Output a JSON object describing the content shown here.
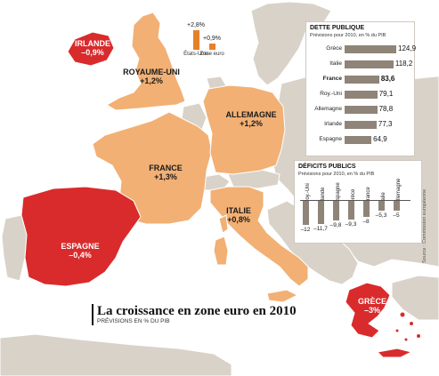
{
  "title": "La croissance en zone euro en 2010",
  "subtitle": "PRÉVISIONS EN % DU PIB",
  "colors": {
    "sea": "#ffffff",
    "land_other": "#d9d2c9",
    "growth_pos": "#f2b074",
    "growth_neg": "#d92b2c",
    "bar": "#8f8478",
    "accent": "#e8802a"
  },
  "countries": [
    {
      "id": "irlande",
      "name": "IRLANDE",
      "value": "–0,9%",
      "sign": "neg"
    },
    {
      "id": "royaume-uni",
      "name": "ROYAUME-UNI",
      "value": "+1,2%",
      "sign": "pos"
    },
    {
      "id": "france",
      "name": "FRANCE",
      "value": "+1,3%",
      "sign": "pos"
    },
    {
      "id": "allemagne",
      "name": "ALLEMAGNE",
      "value": "+1,2%",
      "sign": "pos"
    },
    {
      "id": "italie",
      "name": "ITALIE",
      "value": "+0,8%",
      "sign": "pos"
    },
    {
      "id": "espagne",
      "name": "ESPAGNE",
      "value": "–0,4%",
      "sign": "neg"
    },
    {
      "id": "grece",
      "name": "GRÈCE",
      "value": "–3%",
      "sign": "neg"
    }
  ],
  "growth_compare": {
    "items": [
      {
        "label": "États-Unis",
        "value": 2.8,
        "value_label": "+2,8%"
      },
      {
        "label": "Zone euro",
        "value": 0.9,
        "value_label": "+0,9%"
      }
    ]
  },
  "debt_panel": {
    "title": "DETTE PUBLIQUE",
    "subtitle": "Prévisions pour 2010, en % du PIB",
    "rows": [
      {
        "country": "Grèce",
        "value": 124.9,
        "label": "124,9"
      },
      {
        "country": "Italie",
        "value": 118.2,
        "label": "118,2"
      },
      {
        "country": "France",
        "value": 83.6,
        "label": "83,6",
        "highlight": true
      },
      {
        "country": "Roy.-Uni",
        "value": 79.1,
        "label": "79,1"
      },
      {
        "country": "Allemagne",
        "value": 78.8,
        "label": "78,8"
      },
      {
        "country": "Irlande",
        "value": 77.3,
        "label": "77,3"
      },
      {
        "country": "Espagne",
        "value": 64.9,
        "label": "64,9"
      }
    ]
  },
  "deficit_panel": {
    "title": "DÉFICITS PUBLICS",
    "subtitle": "Prévisions pour 2010, en % du PIB",
    "rows": [
      {
        "country": "Roy.-Uni",
        "value": -12,
        "label": "–12"
      },
      {
        "country": "Irlande",
        "value": -11.7,
        "label": "–11,7"
      },
      {
        "country": "Espagne",
        "value": -9.8,
        "label": "–9,8"
      },
      {
        "country": "Grèce",
        "value": -9.3,
        "label": "–9,3"
      },
      {
        "country": "France",
        "value": -8,
        "label": "–8"
      },
      {
        "country": "Italie",
        "value": -5.3,
        "label": "–5,3"
      },
      {
        "country": "Allemagne",
        "value": -5,
        "label": "–5"
      }
    ]
  },
  "source": "Source : Commission européenne"
}
